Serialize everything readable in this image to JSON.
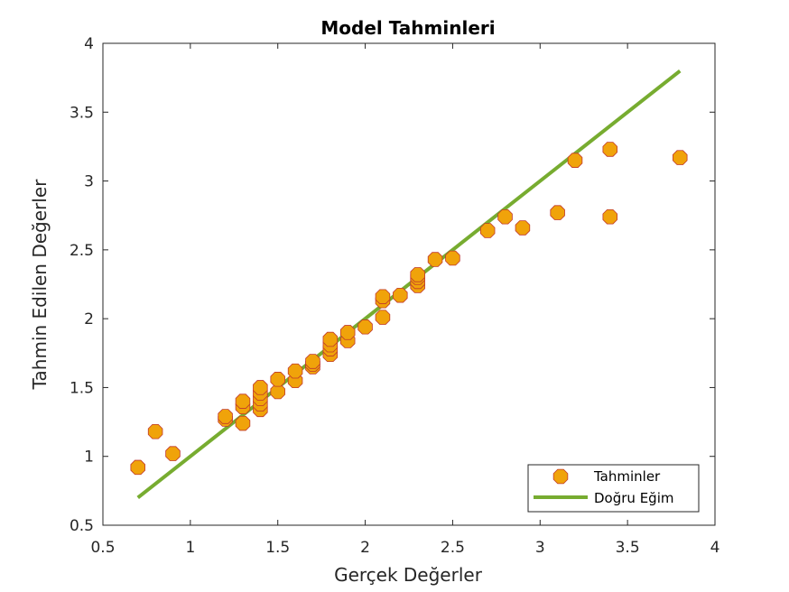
{
  "chart_data": {
    "type": "scatter",
    "title": "Model Tahminleri",
    "xlabel": "Gerçek Değerler",
    "ylabel": "Tahmin Edilen Değerler",
    "xlim": [
      0.5,
      4
    ],
    "ylim": [
      0.5,
      4
    ],
    "x_ticks": [
      "0.5",
      "1",
      "1.5",
      "2",
      "2.5",
      "3",
      "3.5",
      "4"
    ],
    "y_ticks": [
      "0.5",
      "1",
      "1.5",
      "2",
      "2.5",
      "3",
      "3.5",
      "4"
    ],
    "grid": false,
    "legend_position": "bottom-right",
    "series": [
      {
        "name": "Tahminler",
        "kind": "scatter",
        "marker": "octagon",
        "color": "#F0A30A",
        "edge_color": "#C0392B",
        "points": [
          [
            0.7,
            0.92
          ],
          [
            0.8,
            1.18
          ],
          [
            0.9,
            1.02
          ],
          [
            1.2,
            1.27
          ],
          [
            1.2,
            1.29
          ],
          [
            1.3,
            1.24
          ],
          [
            1.3,
            1.36
          ],
          [
            1.3,
            1.4
          ],
          [
            1.4,
            1.34
          ],
          [
            1.4,
            1.38
          ],
          [
            1.4,
            1.42
          ],
          [
            1.4,
            1.46
          ],
          [
            1.4,
            1.5
          ],
          [
            1.5,
            1.47
          ],
          [
            1.5,
            1.56
          ],
          [
            1.6,
            1.55
          ],
          [
            1.6,
            1.62
          ],
          [
            1.7,
            1.65
          ],
          [
            1.7,
            1.67
          ],
          [
            1.7,
            1.69
          ],
          [
            1.8,
            1.74
          ],
          [
            1.8,
            1.78
          ],
          [
            1.8,
            1.81
          ],
          [
            1.8,
            1.85
          ],
          [
            1.9,
            1.84
          ],
          [
            1.9,
            1.9
          ],
          [
            2.0,
            1.94
          ],
          [
            2.1,
            2.01
          ],
          [
            2.1,
            2.13
          ],
          [
            2.1,
            2.16
          ],
          [
            2.2,
            2.17
          ],
          [
            2.3,
            2.24
          ],
          [
            2.3,
            2.27
          ],
          [
            2.3,
            2.3
          ],
          [
            2.3,
            2.32
          ],
          [
            2.4,
            2.43
          ],
          [
            2.5,
            2.44
          ],
          [
            2.7,
            2.64
          ],
          [
            2.8,
            2.74
          ],
          [
            2.9,
            2.66
          ],
          [
            3.1,
            2.77
          ],
          [
            3.2,
            3.15
          ],
          [
            3.4,
            2.74
          ],
          [
            3.4,
            3.23
          ],
          [
            3.8,
            3.17
          ]
        ]
      },
      {
        "name": "Doğru Eğim",
        "kind": "line",
        "color": "#77AC30",
        "points": [
          [
            0.7,
            0.7
          ],
          [
            3.8,
            3.8
          ]
        ]
      }
    ]
  }
}
